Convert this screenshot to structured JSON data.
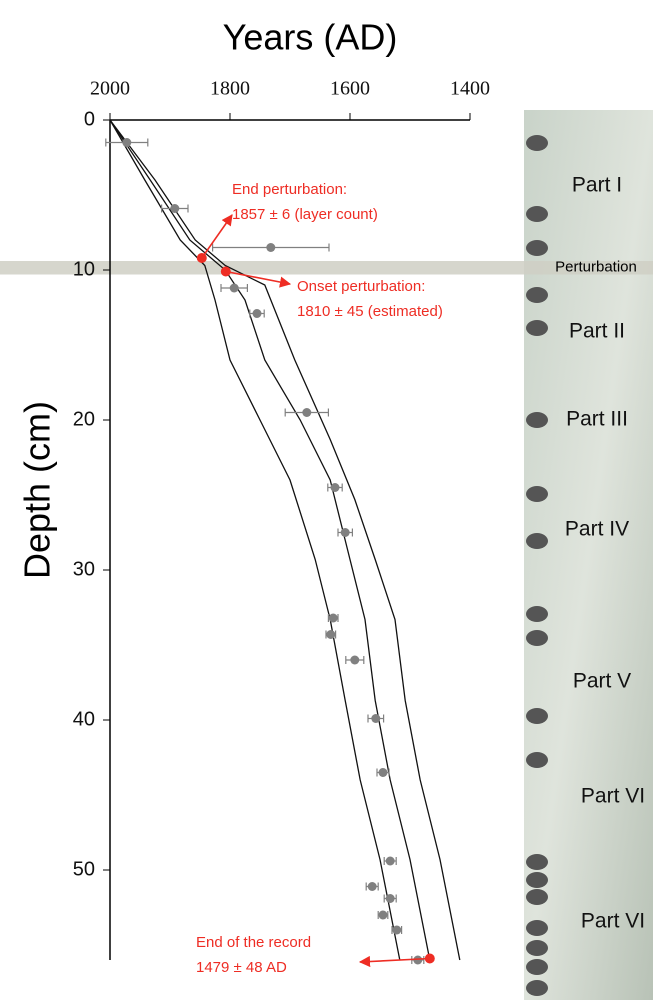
{
  "chart_data": {
    "type": "scatter",
    "title": "Years  (AD)",
    "y_label": "Depth (cm)",
    "xlim": [
      2000,
      1400
    ],
    "ylim": [
      0,
      56
    ],
    "xticks": [
      2000,
      1800,
      1600,
      1400
    ],
    "yticks": [
      0,
      10,
      20,
      30,
      40,
      50
    ],
    "points": {
      "color": "#808080",
      "x": [
        1972,
        1892,
        1732,
        1793,
        1755,
        1672,
        1625,
        1608,
        1628,
        1632,
        1592,
        1557,
        1545,
        1533,
        1563,
        1533,
        1545,
        1522,
        1487
      ],
      "y": [
        1.5,
        5.9,
        8.5,
        11.2,
        12.9,
        19.5,
        24.5,
        27.5,
        33.2,
        34.3,
        36,
        39.9,
        43.5,
        49.4,
        51.1,
        51.9,
        53,
        54,
        56
      ],
      "xerr": [
        35,
        22,
        97,
        22,
        12,
        36,
        12,
        12,
        8,
        8,
        15,
        13,
        10,
        10,
        10,
        10,
        8,
        8,
        10
      ]
    },
    "lines": [
      {
        "x": [
          2000,
          1942,
          1883,
          1842,
          1825,
          1800,
          1750,
          1700,
          1658,
          1633,
          1608,
          1583,
          1550,
          1517
        ],
        "y": [
          0,
          4,
          8,
          9.7,
          12,
          16,
          20,
          24,
          29.3,
          33.3,
          38.7,
          44,
          49.3,
          56
        ]
      },
      {
        "x": [
          2000,
          1933,
          1867,
          1808,
          1775,
          1742,
          1683,
          1633,
          1600,
          1575,
          1558,
          1533,
          1500,
          1467
        ],
        "y": [
          0,
          4,
          8,
          10,
          12,
          16,
          20,
          24,
          29.3,
          33.3,
          38.7,
          44,
          49.3,
          56
        ]
      },
      {
        "x": [
          2000,
          1925,
          1858,
          1808,
          1742,
          1692,
          1633,
          1592,
          1558,
          1525,
          1508,
          1483,
          1450,
          1417
        ],
        "y": [
          0,
          4,
          8,
          9.7,
          11,
          16,
          21.3,
          25.3,
          29.3,
          33.3,
          38.7,
          44,
          49.3,
          56
        ]
      }
    ],
    "highlights": {
      "color": "#ee2d24",
      "x": [
        1847,
        1807,
        1467
      ],
      "y": [
        9.2,
        10.1,
        55.9
      ]
    },
    "band": {
      "y": [
        9.4,
        10.3
      ],
      "label": "Perturbation"
    },
    "annotations": [
      [
        "End perturbation:",
        "1857 ± 6 (layer count)"
      ],
      [
        "Onset perturbation:",
        "1810 ± 45 (estimated)"
      ],
      [
        "End of the record",
        "1479 ± 48 AD"
      ]
    ],
    "core_labels": [
      "Part I",
      "Part II",
      "Part III",
      "Part IV",
      "Part V",
      "Part VI",
      "Part VI"
    ]
  }
}
